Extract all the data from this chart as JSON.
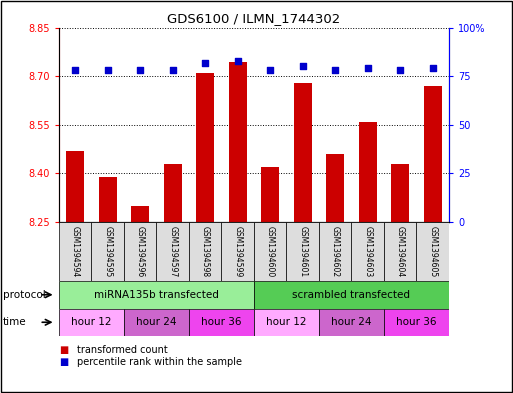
{
  "title": "GDS6100 / ILMN_1744302",
  "samples": [
    "GSM1394594",
    "GSM1394595",
    "GSM1394596",
    "GSM1394597",
    "GSM1394598",
    "GSM1394599",
    "GSM1394600",
    "GSM1394601",
    "GSM1394602",
    "GSM1394603",
    "GSM1394604",
    "GSM1394605"
  ],
  "bar_values": [
    8.47,
    8.39,
    8.3,
    8.43,
    8.71,
    8.745,
    8.42,
    8.68,
    8.46,
    8.56,
    8.43,
    8.67
  ],
  "bar_base": 8.25,
  "percentile_values": [
    78,
    78,
    78,
    78,
    82,
    83,
    78,
    80,
    78,
    79,
    78,
    79
  ],
  "ylim_left": [
    8.25,
    8.85
  ],
  "ylim_right": [
    0,
    100
  ],
  "yticks_left": [
    8.25,
    8.4,
    8.55,
    8.7,
    8.85
  ],
  "yticks_right": [
    0,
    25,
    50,
    75,
    100
  ],
  "bar_color": "#CC0000",
  "dot_color": "#0000CC",
  "protocol_colors": [
    "#99EE99",
    "#55CC55"
  ],
  "protocol_groups": [
    {
      "label": "miRNA135b transfected",
      "start": 0,
      "end": 6
    },
    {
      "label": "scrambled transfected",
      "start": 6,
      "end": 12
    }
  ],
  "time_groups": [
    {
      "label": "hour 12",
      "start": 0,
      "end": 2,
      "color": "#FFAAFF"
    },
    {
      "label": "hour 24",
      "start": 2,
      "end": 4,
      "color": "#CC66CC"
    },
    {
      "label": "hour 36",
      "start": 4,
      "end": 6,
      "color": "#EE44EE"
    },
    {
      "label": "hour 12",
      "start": 6,
      "end": 8,
      "color": "#FFAAFF"
    },
    {
      "label": "hour 24",
      "start": 8,
      "end": 10,
      "color": "#CC66CC"
    },
    {
      "label": "hour 36",
      "start": 10,
      "end": 12,
      "color": "#EE44EE"
    }
  ],
  "sample_box_color": "#DDDDDD",
  "legend_items": [
    {
      "label": "transformed count",
      "color": "#CC0000"
    },
    {
      "label": "percentile rank within the sample",
      "color": "#0000CC"
    }
  ]
}
